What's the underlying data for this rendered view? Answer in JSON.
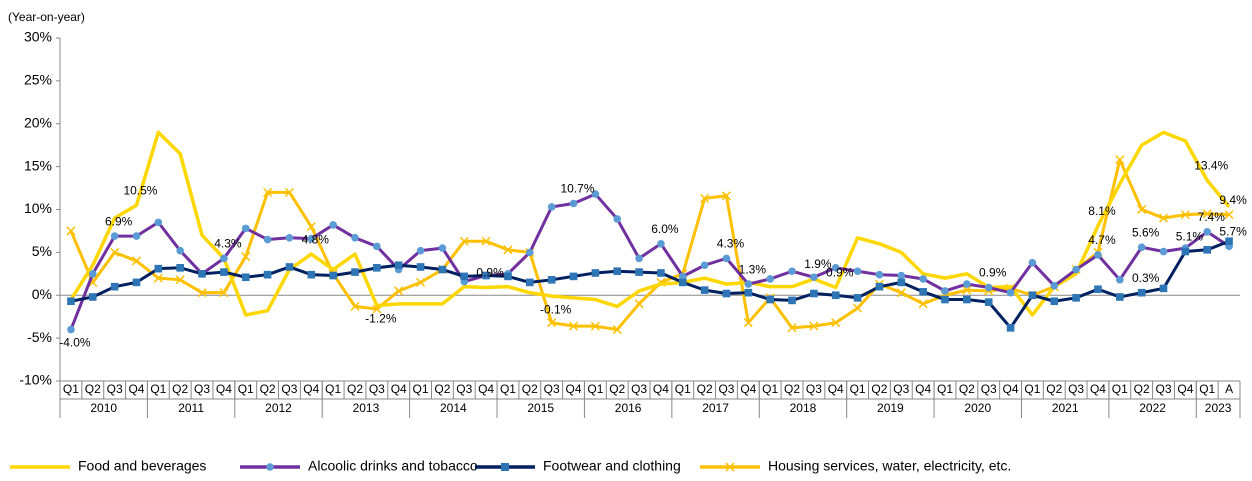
{
  "chart_data": {
    "type": "line",
    "y_label": "(Year-on-year)",
    "ylim": [
      -10,
      30
    ],
    "yticks": [
      {
        "value": -10,
        "label": "-10%"
      },
      {
        "value": -5,
        "label": "-5%"
      },
      {
        "value": 0,
        "label": "0%"
      },
      {
        "value": 5,
        "label": "5%"
      },
      {
        "value": 10,
        "label": "10%"
      },
      {
        "value": 15,
        "label": "15%"
      },
      {
        "value": 20,
        "label": "20%"
      },
      {
        "value": 25,
        "label": "25%"
      },
      {
        "value": 30,
        "label": "30%"
      }
    ],
    "grid": false,
    "legend": "bottom",
    "categories": [
      "Q1",
      "Q2",
      "Q3",
      "Q4",
      "Q1",
      "Q2",
      "Q3",
      "Q4",
      "Q1",
      "Q2",
      "Q3",
      "Q4",
      "Q1",
      "Q2",
      "Q3",
      "Q4",
      "Q1",
      "Q2",
      "Q3",
      "Q4",
      "Q1",
      "Q2",
      "Q3",
      "Q4",
      "Q1",
      "Q2",
      "Q3",
      "Q4",
      "Q1",
      "Q2",
      "Q3",
      "Q4",
      "Q1",
      "Q2",
      "Q3",
      "Q4",
      "Q1",
      "Q2",
      "Q3",
      "Q4",
      "Q1",
      "Q2",
      "Q3",
      "Q4",
      "Q1",
      "Q2",
      "Q3",
      "Q4",
      "Q1",
      "Q2",
      "Q3",
      "Q4",
      "Q1",
      "A"
    ],
    "year_groups": [
      {
        "label": "2010",
        "count": 4
      },
      {
        "label": "2011",
        "count": 4
      },
      {
        "label": "2012",
        "count": 4
      },
      {
        "label": "2013",
        "count": 4
      },
      {
        "label": "2014",
        "count": 4
      },
      {
        "label": "2015",
        "count": 4
      },
      {
        "label": "2016",
        "count": 4
      },
      {
        "label": "2017",
        "count": 4
      },
      {
        "label": "2018",
        "count": 4
      },
      {
        "label": "2019",
        "count": 4
      },
      {
        "label": "2020",
        "count": 4
      },
      {
        "label": "2021",
        "count": 4
      },
      {
        "label": "2022",
        "count": 4
      },
      {
        "label": "2023",
        "count": 2
      }
    ],
    "series": [
      {
        "name": "Food and beverages",
        "color": "#ffd700",
        "marker": "none",
        "values": [
          -0.5,
          3.5,
          9,
          10.5,
          19,
          16.5,
          7,
          4.3,
          -2.3,
          -1.8,
          3,
          4.8,
          3,
          4.8,
          -1.2,
          -1,
          -1,
          -1,
          1,
          0.9,
          1,
          0.3,
          -0.1,
          -0.3,
          -0.5,
          -1.3,
          0.5,
          1.3,
          1.5,
          2,
          1.3,
          1.5,
          1,
          1,
          1.9,
          0.9,
          6.7,
          6,
          5,
          2.5,
          2,
          2.5,
          0.9,
          1,
          -2.3,
          1,
          2.5,
          8.1,
          13,
          17.5,
          19,
          18,
          13.4,
          10.3
        ],
        "value_labels": [
          null,
          null,
          null,
          "10.5%",
          null,
          null,
          null,
          "4.3%",
          null,
          null,
          null,
          "4.8%",
          null,
          null,
          "-1.2%",
          null,
          null,
          null,
          null,
          "0.9%",
          null,
          null,
          "-0.1%",
          null,
          null,
          null,
          null,
          null,
          null,
          null,
          null,
          null,
          null,
          null,
          "1.9%",
          "0.9%",
          null,
          null,
          null,
          null,
          null,
          null,
          null,
          null,
          null,
          null,
          null,
          "8.1%",
          null,
          null,
          null,
          null,
          "13.4%",
          null
        ]
      },
      {
        "name": "Alcoolic drinks and tobacco",
        "color": "#7030a0",
        "marker": "circle",
        "marker_color": "#5b9bd5",
        "values": [
          -4.0,
          2.5,
          6.9,
          6.9,
          8.5,
          5.2,
          2.5,
          4.3,
          7.8,
          6.5,
          6.7,
          6.6,
          8.2,
          6.7,
          5.7,
          3,
          5.2,
          5.5,
          1.6,
          2.3,
          2.5,
          5,
          10.3,
          10.7,
          11.8,
          8.9,
          4.3,
          6.0,
          2.2,
          3.5,
          4.3,
          1.3,
          1.9,
          2.8,
          2.1,
          3.2,
          2.8,
          2.4,
          2.3,
          1.9,
          0.5,
          1.3,
          0.9,
          0.3,
          3.8,
          1.1,
          3,
          4.7,
          1.8,
          5.6,
          5.1,
          5.5,
          7.4,
          5.7
        ],
        "value_labels": [
          "-4.0%",
          null,
          "6.9%",
          null,
          null,
          null,
          null,
          null,
          null,
          null,
          null,
          null,
          null,
          null,
          null,
          null,
          null,
          null,
          null,
          null,
          null,
          null,
          null,
          "10.7%",
          null,
          null,
          null,
          "6.0%",
          null,
          null,
          "4.3%",
          "1.3%",
          null,
          null,
          null,
          null,
          null,
          null,
          null,
          null,
          null,
          null,
          "0.9%",
          null,
          null,
          null,
          null,
          "4.7%",
          null,
          "5.6%",
          null,
          null,
          "7.4%",
          "5.7%"
        ]
      },
      {
        "name": "Footwear and clothing",
        "color": "#002060",
        "marker": "square",
        "marker_color": "#2e75b6",
        "values": [
          -0.7,
          -0.2,
          1,
          1.5,
          3.1,
          3.2,
          2.5,
          2.7,
          2.1,
          2.4,
          3.3,
          2.4,
          2.3,
          2.7,
          3.2,
          3.5,
          3.3,
          3,
          2.2,
          2.3,
          2.2,
          1.5,
          1.8,
          2.2,
          2.6,
          2.8,
          2.7,
          2.6,
          1.5,
          0.6,
          0.2,
          0.3,
          -0.5,
          -0.6,
          0.2,
          0,
          -0.3,
          1,
          1.5,
          0.4,
          -0.5,
          -0.5,
          -0.8,
          -3.8,
          0,
          -0.7,
          -0.3,
          0.7,
          -0.2,
          0.3,
          0.8,
          5.1,
          5.3,
          6.3
        ],
        "value_labels": [
          null,
          null,
          null,
          null,
          null,
          null,
          null,
          null,
          null,
          null,
          null,
          null,
          null,
          null,
          null,
          null,
          null,
          null,
          null,
          null,
          null,
          null,
          null,
          null,
          null,
          null,
          null,
          null,
          null,
          null,
          null,
          null,
          null,
          null,
          null,
          null,
          null,
          null,
          null,
          null,
          null,
          null,
          null,
          null,
          null,
          null,
          null,
          null,
          null,
          "0.3%",
          null,
          "5.1%",
          null,
          null
        ]
      },
      {
        "name": "Housing services, water, electricity, etc.",
        "color": "#ffc000",
        "marker": "x",
        "values": [
          7.5,
          1.5,
          5,
          4,
          2,
          1.8,
          0.3,
          0.3,
          4.5,
          12,
          12,
          8,
          2.5,
          -1.3,
          -1.6,
          0.5,
          1.5,
          3,
          6.3,
          6.3,
          5.3,
          5,
          -3.2,
          -3.6,
          -3.6,
          -4,
          -1,
          1.5,
          2.5,
          11.3,
          11.6,
          -3.2,
          -0.3,
          -3.8,
          -3.6,
          -3.2,
          -1.5,
          1.3,
          0.3,
          -1,
          0,
          0.6,
          0.5,
          0.8,
          0,
          1,
          3,
          5,
          15.8,
          10,
          9,
          9.4,
          9.5,
          9.4
        ],
        "value_labels": [
          null,
          null,
          null,
          null,
          null,
          null,
          null,
          null,
          null,
          null,
          null,
          null,
          null,
          null,
          null,
          null,
          null,
          null,
          null,
          null,
          null,
          null,
          null,
          null,
          null,
          null,
          null,
          null,
          null,
          null,
          null,
          null,
          null,
          null,
          null,
          null,
          null,
          null,
          null,
          null,
          null,
          null,
          null,
          null,
          null,
          null,
          null,
          null,
          null,
          null,
          null,
          null,
          null,
          "9.4%"
        ]
      }
    ]
  }
}
